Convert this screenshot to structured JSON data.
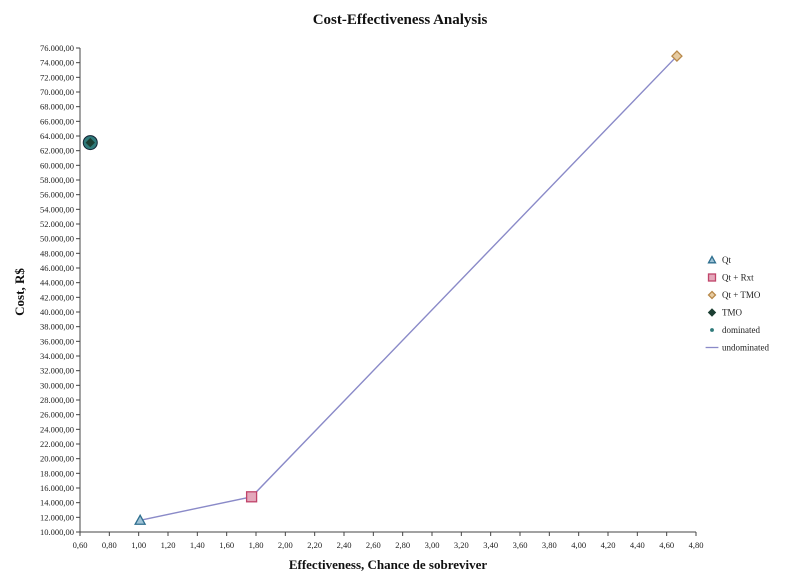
{
  "chart_data": {
    "type": "scatter",
    "title": "Cost-Effectiveness Analysis",
    "xlabel": "Effectiveness, Chance de sobreviver",
    "ylabel": "Cost, R$",
    "xlim": [
      0.6,
      4.8
    ],
    "ylim": [
      10000,
      76000
    ],
    "x_ticks": [
      "0,60",
      "0,80",
      "1,00",
      "1,20",
      "1,40",
      "1,60",
      "1,80",
      "2,00",
      "2,20",
      "2,40",
      "2,60",
      "2,80",
      "3,00",
      "3,20",
      "3,40",
      "3,60",
      "3,80",
      "4,00",
      "4,20",
      "4,40",
      "4,60",
      "4,80"
    ],
    "y_ticks": [
      "10.000,00",
      "12.000,00",
      "14.000,00",
      "16.000,00",
      "18.000,00",
      "20.000,00",
      "22.000,00",
      "24.000,00",
      "26.000,00",
      "28.000,00",
      "30.000,00",
      "32.000,00",
      "34.000,00",
      "36.000,00",
      "38.000,00",
      "40.000,00",
      "42.000,00",
      "44.000,00",
      "46.000,00",
      "48.000,00",
      "50.000,00",
      "52.000,00",
      "54.000,00",
      "56.000,00",
      "58.000,00",
      "60.000,00",
      "62.000,00",
      "64.000,00",
      "66.000,00",
      "68.000,00",
      "70.000,00",
      "72.000,00",
      "74.000,00",
      "76.000,00"
    ],
    "series": [
      {
        "name": "Qt",
        "marker": "triangle",
        "color": "#2f6f8f",
        "x": [
          1.01
        ],
        "y": [
          11600
        ]
      },
      {
        "name": "Qt + Rxt",
        "marker": "square",
        "color": "#c0446a",
        "x": [
          1.77
        ],
        "y": [
          14800
        ]
      },
      {
        "name": "Qt + TMO",
        "marker": "diamond",
        "color": "#b8894a",
        "x": [
          4.67
        ],
        "y": [
          74900
        ]
      },
      {
        "name": "TMO",
        "marker": "diamond-filled",
        "color": "#1c3f33",
        "x": [
          0.67
        ],
        "y": [
          63100
        ]
      }
    ],
    "frontier": {
      "name": "undominated",
      "color": "#8a8ac8",
      "x": [
        1.01,
        1.77,
        4.67
      ],
      "y": [
        11600,
        14800,
        74900
      ]
    },
    "dominated": {
      "name": "dominated",
      "color": "#2f7a7a",
      "x": [
        0.67
      ],
      "y": [
        63100
      ]
    },
    "legend": {
      "placement": "right",
      "entries": [
        {
          "label": "Qt",
          "marker": "triangle",
          "color": "#2f6f8f"
        },
        {
          "label": "Qt + Rxt",
          "marker": "square",
          "color": "#c0446a"
        },
        {
          "label": "Qt + TMO",
          "marker": "diamond",
          "color": "#b8894a"
        },
        {
          "label": "TMO",
          "marker": "diamond-filled",
          "color": "#1c3f33"
        },
        {
          "label": "dominated",
          "marker": "dot",
          "color": "#2f7a7a"
        },
        {
          "label": "undominated",
          "marker": "line",
          "color": "#8a8ac8"
        }
      ]
    },
    "grid": false
  }
}
